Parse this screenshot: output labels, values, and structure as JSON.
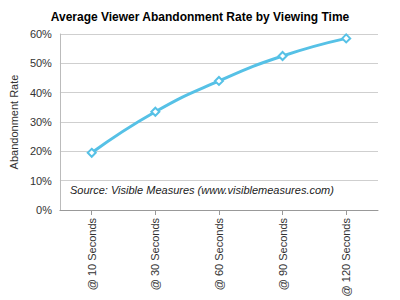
{
  "chart_data": {
    "type": "line",
    "title": "Average Viewer Abandonment Rate by Viewing Time",
    "y_label": "Abandonment Rate",
    "annotation": "Source: Visible Measures (www.visiblemeasures.com)",
    "categories": [
      "@ 10 Seconds",
      "@ 30 Seconds",
      "@ 60 Seconds",
      "@ 90 Seconds",
      "@ 120 Seconds"
    ],
    "values": [
      19.5,
      33.5,
      44,
      52.5,
      58.5
    ],
    "color": "#56c1e6",
    "marker": "diamond",
    "ylim": [
      0,
      60
    ],
    "yticks": [
      {
        "value": 0,
        "label": "0%"
      },
      {
        "value": 10,
        "label": "10%"
      },
      {
        "value": 20,
        "label": "20%"
      },
      {
        "value": 30,
        "label": "30%"
      },
      {
        "value": 40,
        "label": "40%"
      },
      {
        "value": 50,
        "label": "50%"
      },
      {
        "value": 60,
        "label": "60%"
      }
    ],
    "grid": true
  }
}
